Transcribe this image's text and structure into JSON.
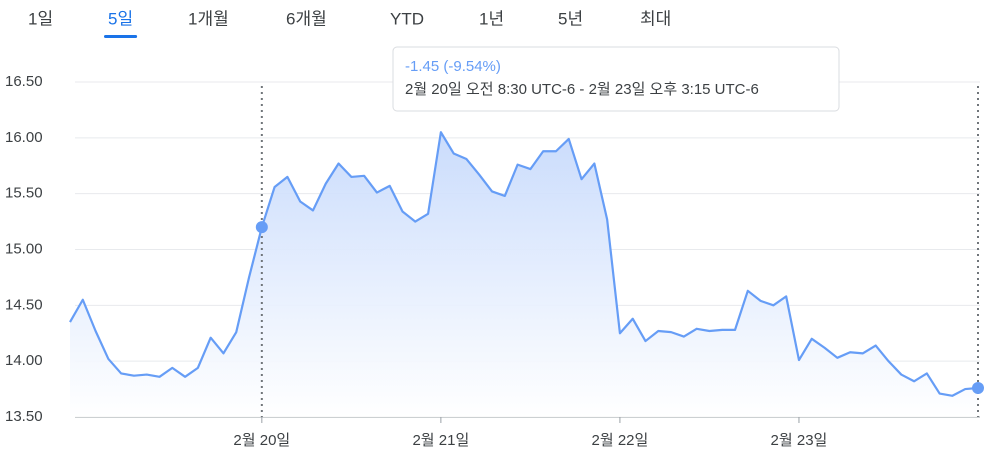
{
  "tabs": {
    "items": [
      "1일",
      "5일",
      "1개월",
      "6개월",
      "YTD",
      "1년",
      "5년",
      "최대"
    ],
    "selected": 1
  },
  "chart_data": {
    "type": "area",
    "tooltip": {
      "change": "-1.45 (-9.54%)",
      "range": "2월 20일 오전 8:30 UTC-6 - 2월 23일 오후 3:15 UTC-6"
    },
    "categories": [
      null,
      null,
      null,
      null,
      null,
      null,
      null,
      null,
      null,
      null,
      null,
      null,
      null,
      null,
      null,
      "2월 20일",
      null,
      null,
      null,
      null,
      null,
      null,
      null,
      null,
      null,
      null,
      null,
      null,
      null,
      "2월 21일",
      null,
      null,
      null,
      null,
      null,
      null,
      null,
      null,
      null,
      null,
      null,
      null,
      null,
      "2월 22일",
      null,
      null,
      null,
      null,
      null,
      null,
      null,
      null,
      null,
      null,
      null,
      null,
      null,
      "2월 23일",
      null,
      null,
      null,
      null,
      null,
      null,
      null,
      null,
      null,
      null,
      null,
      null,
      null,
      null
    ],
    "series": [
      {
        "color": "#669df6",
        "values": [
          14.35,
          14.55,
          14.27,
          14.02,
          13.89,
          13.87,
          13.88,
          13.86,
          13.94,
          13.86,
          13.94,
          14.21,
          14.07,
          14.26,
          14.75,
          15.2,
          15.56,
          15.65,
          15.43,
          15.35,
          15.59,
          15.77,
          15.65,
          15.66,
          15.51,
          15.57,
          15.34,
          15.25,
          15.32,
          16.05,
          15.86,
          15.81,
          15.67,
          15.52,
          15.48,
          15.76,
          15.72,
          15.88,
          15.88,
          15.99,
          15.63,
          15.77,
          15.27,
          14.25,
          14.38,
          14.18,
          14.27,
          14.26,
          14.22,
          14.29,
          14.27,
          14.28,
          14.28,
          14.63,
          14.54,
          14.5,
          14.58,
          14.01,
          14.2,
          14.12,
          14.03,
          14.08,
          14.07,
          14.14,
          14.0,
          13.88,
          13.82,
          13.89,
          13.71,
          13.69,
          13.75,
          13.76
        ]
      }
    ],
    "selection": [
      15,
      71
    ],
    "ylim": [
      13.5,
      16.5
    ],
    "yticks": [
      {
        "value": 13.5,
        "label": "13.50"
      },
      {
        "value": 14,
        "label": "14.00"
      },
      {
        "value": 14.5,
        "label": "14.50"
      },
      {
        "value": 15,
        "label": "15.00"
      },
      {
        "value": 15.5,
        "label": "15.50"
      },
      {
        "value": 16,
        "label": "16.00"
      },
      {
        "value": 16.5,
        "label": "16.50"
      }
    ],
    "grid": true
  }
}
